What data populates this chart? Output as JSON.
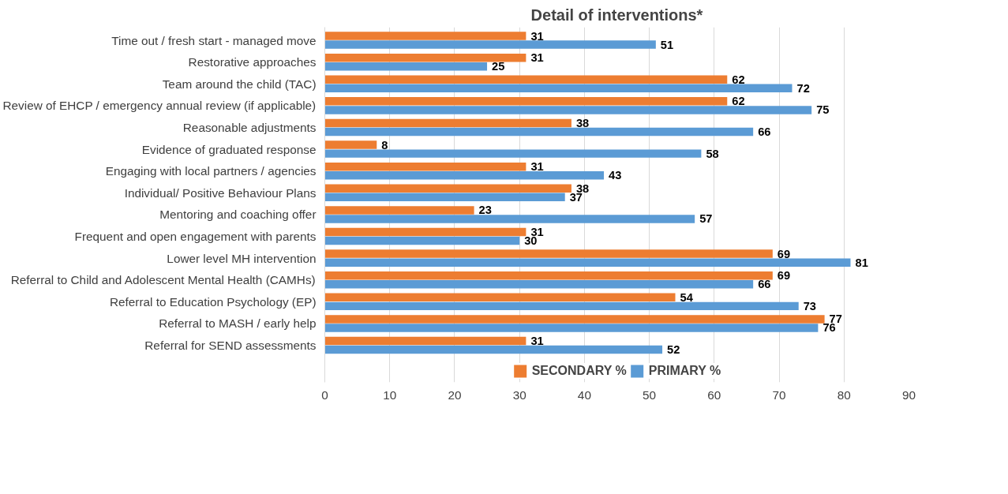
{
  "chart_data": {
    "type": "bar",
    "orientation": "horizontal",
    "title": "Detail of interventions*",
    "categories": [
      "Time out / fresh start - managed move",
      "Restorative approaches",
      "Team around the child (TAC)",
      "Review of EHCP / emergency annual review (if applicable)",
      "Reasonable adjustments",
      "Evidence of graduated response",
      "Engaging with local partners / agencies",
      "Individual/ Positive Behaviour Plans",
      "Mentoring and coaching offer",
      "Frequent and open engagement with parents",
      "Lower level MH intervention",
      "Referral to Child and Adolescent Mental Health (CAMHs)",
      "Referral to Education Psychology (EP)",
      "Referral to MASH / early help",
      "Referral for SEND assessments"
    ],
    "series": [
      {
        "name": "SECONDARY %",
        "color": "#ed7d31",
        "values": [
          31,
          31,
          62,
          62,
          38,
          8,
          31,
          38,
          23,
          31,
          69,
          69,
          54,
          77,
          31
        ]
      },
      {
        "name": "PRIMARY %",
        "color": "#5b9bd5",
        "values": [
          51,
          25,
          72,
          75,
          66,
          58,
          43,
          37,
          57,
          30,
          81,
          66,
          73,
          76,
          52
        ]
      }
    ],
    "xlim": [
      0,
      90
    ],
    "xticks": [
      0,
      10,
      20,
      30,
      40,
      50,
      60,
      70,
      80,
      90
    ],
    "grid": "x",
    "legend": "bottom",
    "data_labels": true
  }
}
